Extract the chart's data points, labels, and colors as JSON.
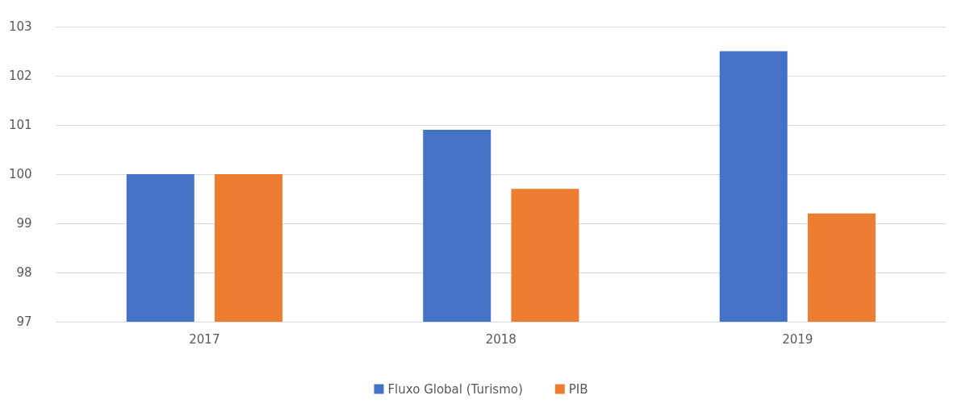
{
  "chart_data": {
    "type": "bar",
    "categories": [
      "2017",
      "2018",
      "2019"
    ],
    "series": [
      {
        "name": "Fluxo Global (Turismo)",
        "color": "#4472c4",
        "values": [
          100,
          100.9,
          102.5
        ]
      },
      {
        "name": "PIB",
        "color": "#ed7d31",
        "values": [
          100,
          99.7,
          99.2
        ]
      }
    ],
    "ylim": [
      97,
      103
    ],
    "yticks": [
      97,
      98,
      99,
      100,
      101,
      102,
      103
    ],
    "grid": "y",
    "legend": "bottom"
  }
}
